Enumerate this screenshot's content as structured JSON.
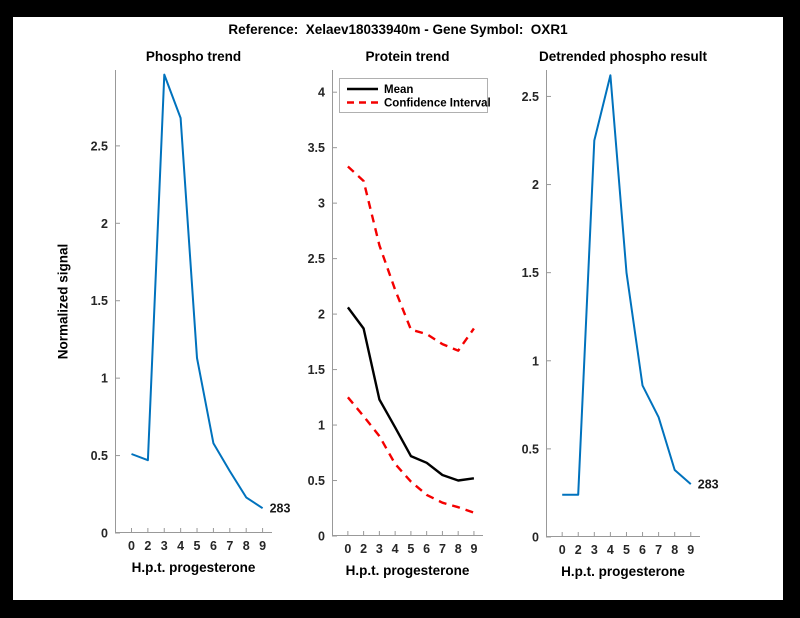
{
  "figure_title": "Reference:  Xelaev18033940m - Gene Symbol:  OXR1",
  "colors": {
    "blue": "#0072BD",
    "red": "#F40000",
    "black": "#000000",
    "axis": "#999999",
    "tick_text": "#262626"
  },
  "chart_data": [
    {
      "type": "line",
      "title": "Phospho trend",
      "xlabel": "H.p.t. progesterone",
      "ylabel": "Normalized signal",
      "x_ticklabels": [
        "0",
        "2",
        "3",
        "4",
        "5",
        "6",
        "7",
        "8",
        "9"
      ],
      "ytick_values": [
        0,
        0.5,
        1,
        1.5,
        2,
        2.5
      ],
      "ytick_labels": [
        "0",
        "0.5",
        "1",
        "1.5",
        "2",
        "2.5"
      ],
      "ylim": [
        0,
        2.99
      ],
      "grid": false,
      "legend": null,
      "series": [
        {
          "name": "phospho-signal",
          "color": "blue",
          "dash": false,
          "values": [
            0.51,
            0.47,
            2.96,
            2.68,
            1.13,
            0.58,
            0.4,
            0.23,
            0.16
          ]
        }
      ],
      "end_label": "283"
    },
    {
      "type": "line",
      "title": "Protein trend",
      "xlabel": "H.p.t. progesterone",
      "ylabel": "",
      "x_ticklabels": [
        "0",
        "2",
        "3",
        "4",
        "5",
        "6",
        "7",
        "8",
        "9"
      ],
      "ytick_values": [
        0,
        0.5,
        1,
        1.5,
        2,
        2.5,
        3,
        3.5,
        4
      ],
      "ytick_labels": [
        "0",
        "0.5",
        "1",
        "1.5",
        "2",
        "2.5",
        "3",
        "3.5",
        "4"
      ],
      "ylim": [
        0,
        4.2
      ],
      "grid": false,
      "legend": {
        "position": "top-left",
        "entries": [
          "Mean",
          "Confidence Interval"
        ]
      },
      "series": [
        {
          "name": "mean",
          "color": "black",
          "dash": false,
          "values": [
            2.06,
            1.87,
            1.23,
            0.98,
            0.72,
            0.66,
            0.55,
            0.5,
            0.52
          ]
        },
        {
          "name": "confidence-interval-upper",
          "color": "red",
          "dash": true,
          "values": [
            3.33,
            3.2,
            2.62,
            2.22,
            1.86,
            1.82,
            1.73,
            1.67,
            1.87
          ]
        },
        {
          "name": "confidence-interval-lower",
          "color": "red",
          "dash": true,
          "values": [
            1.25,
            1.08,
            0.9,
            0.65,
            0.49,
            0.37,
            0.3,
            0.26,
            0.21
          ]
        }
      ],
      "end_label": null
    },
    {
      "type": "line",
      "title": "Detrended phospho result",
      "xlabel": "H.p.t. progesterone",
      "ylabel": "",
      "x_ticklabels": [
        "0",
        "2",
        "3",
        "4",
        "5",
        "6",
        "7",
        "8",
        "9"
      ],
      "ytick_values": [
        0,
        0.5,
        1,
        1.5,
        2,
        2.5
      ],
      "ytick_labels": [
        "0",
        "0.5",
        "1",
        "1.5",
        "2",
        "2.5"
      ],
      "ylim": [
        0,
        2.65
      ],
      "grid": false,
      "legend": null,
      "series": [
        {
          "name": "detrended-phospho",
          "color": "blue",
          "dash": false,
          "values": [
            0.24,
            0.24,
            2.25,
            2.62,
            1.5,
            0.86,
            0.68,
            0.38,
            0.3
          ]
        }
      ],
      "end_label": "283"
    }
  ]
}
